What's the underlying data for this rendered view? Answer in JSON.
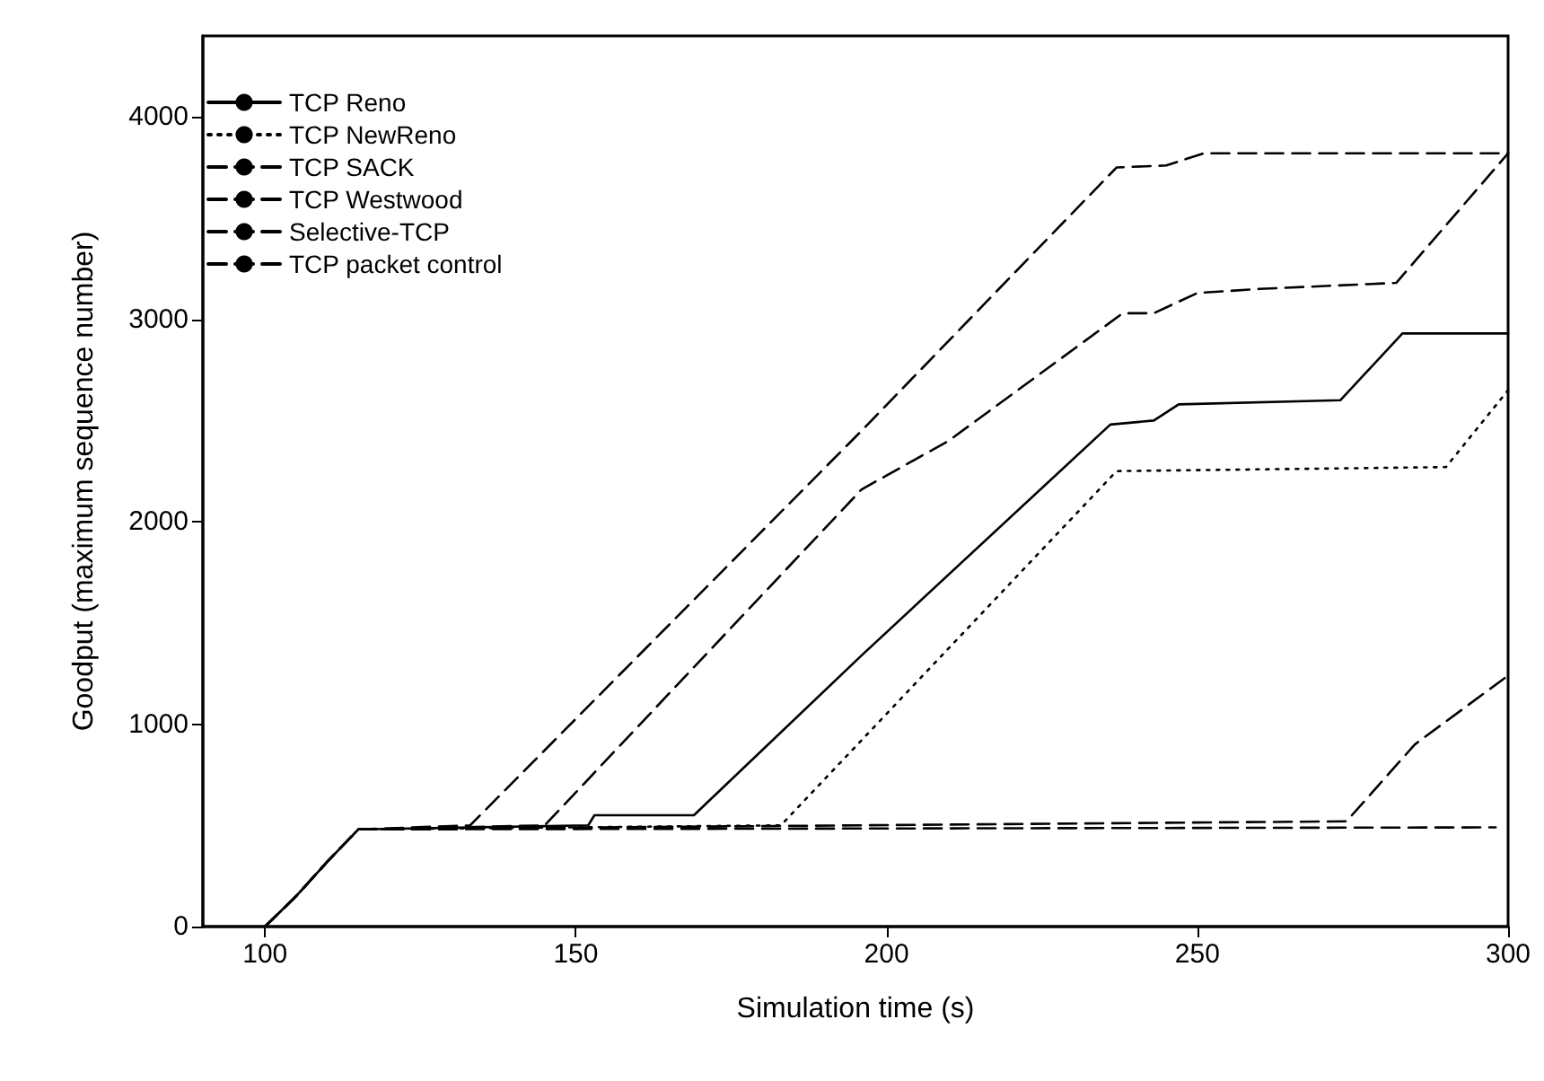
{
  "chart_data": {
    "type": "line",
    "xlabel": "Simulation time (s)",
    "ylabel": "Goodput (maximum sequence number)",
    "xlim": [
      90,
      300
    ],
    "xticks": [
      100,
      150,
      200,
      250,
      300
    ],
    "ylim": [
      0,
      4400
    ],
    "yticks": [
      0,
      1000,
      2000,
      3000,
      4000
    ],
    "grid": false,
    "legend": "top left",
    "marker": "none",
    "series": [
      {
        "name": "TCP Reno",
        "color": "#000000",
        "line_style": "solid",
        "x": [
          100,
          105,
          110,
          115,
          152,
          153,
          169,
          196,
          236,
          243,
          247,
          273,
          283,
          300
        ],
        "values": [
          0,
          150,
          320,
          480,
          500,
          550,
          550,
          1340,
          2480,
          2500,
          2580,
          2600,
          2930,
          2930
        ]
      },
      {
        "name": "TCP NewReno",
        "color": "#000000",
        "line_style": "dotted",
        "x": [
          100,
          105,
          110,
          115,
          183,
          237,
          290,
          300
        ],
        "values": [
          0,
          150,
          320,
          480,
          500,
          2250,
          2270,
          2650
        ]
      },
      {
        "name": "TCP SACK",
        "color": "#000000",
        "line_style": "dashed",
        "x": [
          100,
          105,
          110,
          115,
          274,
          285,
          300
        ],
        "values": [
          0,
          150,
          320,
          480,
          520,
          900,
          1240
        ]
      },
      {
        "name": "TCP Westwood",
        "color": "#000000",
        "line_style": "dashed",
        "x": [
          100,
          105,
          110,
          115,
          298
        ],
        "values": [
          0,
          150,
          320,
          480,
          490
        ]
      },
      {
        "name": "Selective-TCP",
        "color": "#000000",
        "line_style": "dashed",
        "x": [
          100,
          105,
          110,
          115,
          145,
          196,
          210,
          238,
          243,
          250,
          260,
          282,
          300
        ],
        "values": [
          0,
          150,
          320,
          480,
          500,
          2160,
          2400,
          3030,
          3030,
          3130,
          3150,
          3180,
          3820
        ]
      },
      {
        "name": "TCP packet control",
        "color": "#000000",
        "line_style": "dashed",
        "x": [
          100,
          105,
          110,
          115,
          133,
          196,
          237,
          245,
          251,
          300
        ],
        "values": [
          0,
          150,
          320,
          480,
          500,
          2450,
          3750,
          3760,
          3820,
          3820
        ]
      }
    ]
  }
}
